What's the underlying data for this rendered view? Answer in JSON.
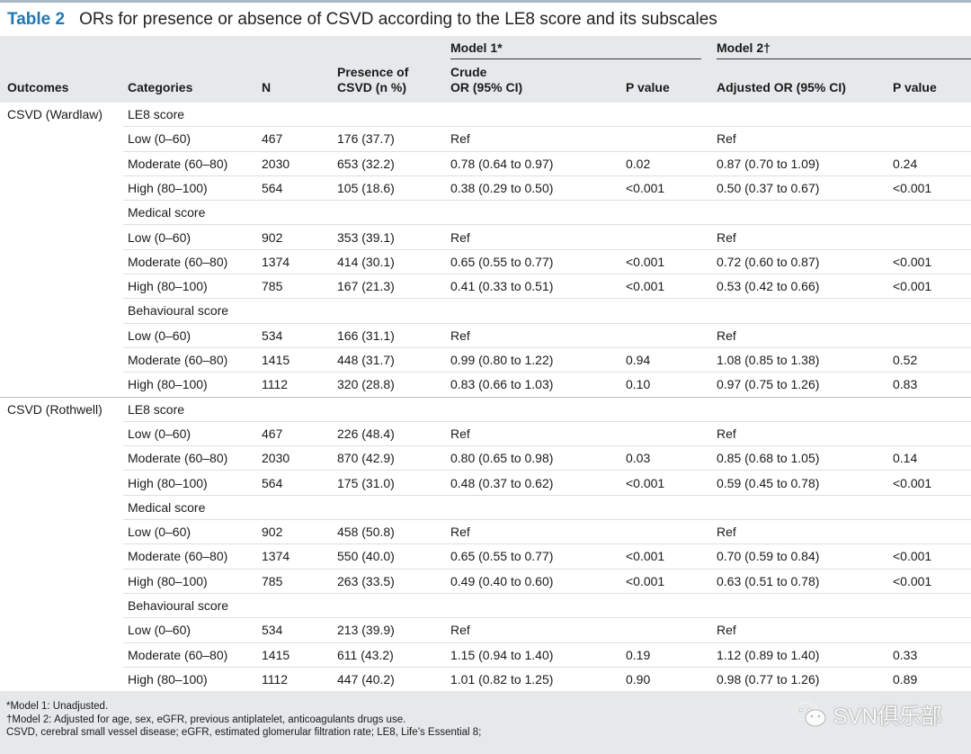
{
  "title": {
    "number": "Table 2",
    "text": "ORs for presence or absence of CSVD according to the LE8 score and its subscales"
  },
  "header": {
    "outcomes": "Outcomes",
    "categories": "Categories",
    "n": "N",
    "presence_line1": "Presence of",
    "presence_line2": "CSVD (n %)",
    "model1": "Model 1*",
    "crude_line1": "Crude",
    "crude_line2": "OR (95% CI)",
    "pvalue1": "P value",
    "model2": "Model 2†",
    "adjusted": "Adjusted OR (95% CI)",
    "pvalue2": "P value"
  },
  "rows": [
    {
      "outcome": "CSVD (Wardlaw)",
      "category": "",
      "n": "",
      "presence": "",
      "or1": "",
      "p1": "",
      "or2": "",
      "p2": "",
      "subheading": "LE8 score"
    },
    {
      "outcome": "",
      "category": "Low (0–60)",
      "n": "467",
      "presence": "176 (37.7)",
      "or1": "Ref",
      "p1": "",
      "or2": "Ref",
      "p2": ""
    },
    {
      "outcome": "",
      "category": "Moderate (60–80)",
      "n": "2030",
      "presence": "653 (32.2)",
      "or1": "0.78 (0.64 to 0.97)",
      "p1": "0.02",
      "or2": "0.87 (0.70 to 1.09)",
      "p2": "0.24"
    },
    {
      "outcome": "",
      "category": "High (80–100)",
      "n": "564",
      "presence": "105 (18.6)",
      "or1": "0.38 (0.29 to 0.50)",
      "p1": "<0.001",
      "or2": "0.50 (0.37 to 0.67)",
      "p2": "<0.001"
    },
    {
      "outcome": "",
      "category": "",
      "n": "",
      "presence": "",
      "or1": "",
      "p1": "",
      "or2": "",
      "p2": "",
      "subheading": "Medical score"
    },
    {
      "outcome": "",
      "category": "Low (0–60)",
      "n": "902",
      "presence": "353 (39.1)",
      "or1": "Ref",
      "p1": "",
      "or2": "Ref",
      "p2": ""
    },
    {
      "outcome": "",
      "category": "Moderate (60–80)",
      "n": "1374",
      "presence": "414 (30.1)",
      "or1": "0.65 (0.55 to 0.77)",
      "p1": "<0.001",
      "or2": "0.72 (0.60 to 0.87)",
      "p2": "<0.001"
    },
    {
      "outcome": "",
      "category": "High (80–100)",
      "n": "785",
      "presence": "167 (21.3)",
      "or1": "0.41 (0.33 to 0.51)",
      "p1": "<0.001",
      "or2": "0.53 (0.42 to 0.66)",
      "p2": "<0.001"
    },
    {
      "outcome": "",
      "category": "",
      "n": "",
      "presence": "",
      "or1": "",
      "p1": "",
      "or2": "",
      "p2": "",
      "subheading": "Behavioural score"
    },
    {
      "outcome": "",
      "category": "Low (0–60)",
      "n": "534",
      "presence": "166 (31.1)",
      "or1": "Ref",
      "p1": "",
      "or2": "Ref",
      "p2": ""
    },
    {
      "outcome": "",
      "category": "Moderate (60–80)",
      "n": "1415",
      "presence": "448 (31.7)",
      "or1": "0.99 (0.80 to 1.22)",
      "p1": "0.94",
      "or2": "1.08 (0.85 to 1.38)",
      "p2": "0.52"
    },
    {
      "outcome": "",
      "category": "High (80–100)",
      "n": "1112",
      "presence": "320 (28.8)",
      "or1": "0.83 (0.66 to 1.03)",
      "p1": "0.10",
      "or2": "0.97 (0.75 to 1.26)",
      "p2": "0.83",
      "group_end": true
    },
    {
      "outcome": "CSVD (Rothwell)",
      "category": "",
      "n": "",
      "presence": "",
      "or1": "",
      "p1": "",
      "or2": "",
      "p2": "",
      "subheading": "LE8 score"
    },
    {
      "outcome": "",
      "category": "Low (0–60)",
      "n": "467",
      "presence": "226 (48.4)",
      "or1": "Ref",
      "p1": "",
      "or2": "Ref",
      "p2": ""
    },
    {
      "outcome": "",
      "category": "Moderate (60–80)",
      "n": "2030",
      "presence": "870 (42.9)",
      "or1": "0.80 (0.65 to 0.98)",
      "p1": "0.03",
      "or2": "0.85 (0.68 to 1.05)",
      "p2": "0.14"
    },
    {
      "outcome": "",
      "category": "High (80–100)",
      "n": "564",
      "presence": "175 (31.0)",
      "or1": "0.48 (0.37 to 0.62)",
      "p1": "<0.001",
      "or2": "0.59 (0.45 to 0.78)",
      "p2": "<0.001"
    },
    {
      "outcome": "",
      "category": "",
      "n": "",
      "presence": "",
      "or1": "",
      "p1": "",
      "or2": "",
      "p2": "",
      "subheading": "Medical score"
    },
    {
      "outcome": "",
      "category": "Low (0–60)",
      "n": "902",
      "presence": "458 (50.8)",
      "or1": "Ref",
      "p1": "",
      "or2": "Ref",
      "p2": ""
    },
    {
      "outcome": "",
      "category": "Moderate (60–80)",
      "n": "1374",
      "presence": "550 (40.0)",
      "or1": "0.65 (0.55 to 0.77)",
      "p1": "<0.001",
      "or2": "0.70 (0.59 to 0.84)",
      "p2": "<0.001"
    },
    {
      "outcome": "",
      "category": "High (80–100)",
      "n": "785",
      "presence": "263 (33.5)",
      "or1": "0.49 (0.40 to 0.60)",
      "p1": "<0.001",
      "or2": "0.63 (0.51 to 0.78)",
      "p2": "<0.001"
    },
    {
      "outcome": "",
      "category": "",
      "n": "",
      "presence": "",
      "or1": "",
      "p1": "",
      "or2": "",
      "p2": "",
      "subheading": "Behavioural score"
    },
    {
      "outcome": "",
      "category": "Low (0–60)",
      "n": "534",
      "presence": "213 (39.9)",
      "or1": "Ref",
      "p1": "",
      "or2": "Ref",
      "p2": ""
    },
    {
      "outcome": "",
      "category": "Moderate (60–80)",
      "n": "1415",
      "presence": "611 (43.2)",
      "or1": "1.15 (0.94 to 1.40)",
      "p1": "0.19",
      "or2": "1.12 (0.89 to 1.40)",
      "p2": "0.33"
    },
    {
      "outcome": "",
      "category": "High (80–100)",
      "n": "1112",
      "presence": "447 (40.2)",
      "or1": "1.01 (0.82 to 1.25)",
      "p1": "0.90",
      "or2": "0.98 (0.77 to 1.26)",
      "p2": "0.89"
    }
  ],
  "footnotes": [
    "*Model 1: Unadjusted.",
    "†Model 2: Adjusted for age, sex, eGFR, previous antiplatelet, anticoagulants drugs use.",
    "CSVD, cerebral small vessel disease; eGFR, estimated glomerular filtration rate; LE8, Life’s Essential 8;"
  ],
  "watermark": {
    "text": "SVN俱乐部",
    "icon": "wechat-icon"
  }
}
